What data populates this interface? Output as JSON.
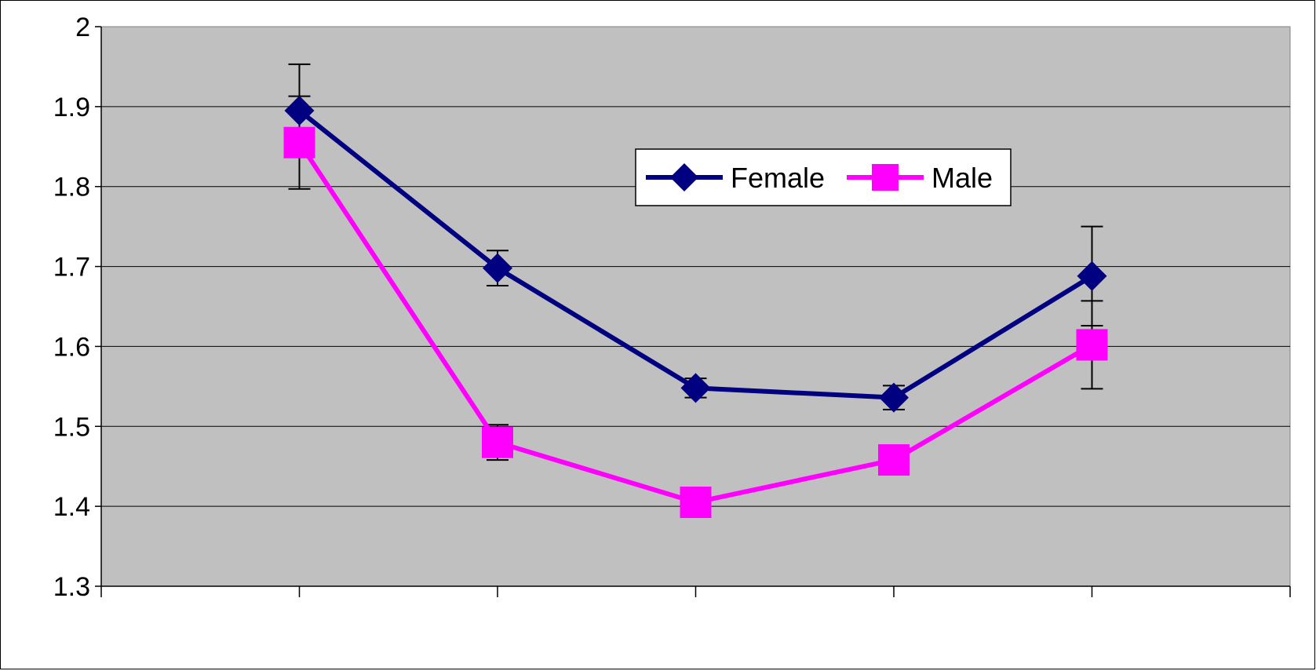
{
  "chart_data": {
    "type": "line",
    "title": "",
    "xlabel": "",
    "ylabel": "",
    "x": [
      1,
      2,
      3,
      4,
      5
    ],
    "ylim": [
      1.3,
      2.0
    ],
    "yticks": [
      "1.3",
      "1.4",
      "1.5",
      "1.6",
      "1.7",
      "1.8",
      "1.9",
      "2"
    ],
    "grid": true,
    "legend_placement": "top-center",
    "plot_background": "#c0c0c0",
    "series": [
      {
        "name": "Female",
        "marker": "diamond",
        "color": "#000080",
        "values": [
          1.895,
          1.698,
          1.548,
          1.536,
          1.688
        ],
        "error": [
          0.058,
          0.022,
          0.012,
          0.015,
          0.062
        ]
      },
      {
        "name": "Male",
        "marker": "square",
        "color": "#ff00ff",
        "values": [
          1.855,
          1.48,
          1.405,
          1.458,
          1.602
        ],
        "error": [
          0.058,
          0.022,
          0.012,
          0.015,
          0.055
        ]
      }
    ]
  }
}
